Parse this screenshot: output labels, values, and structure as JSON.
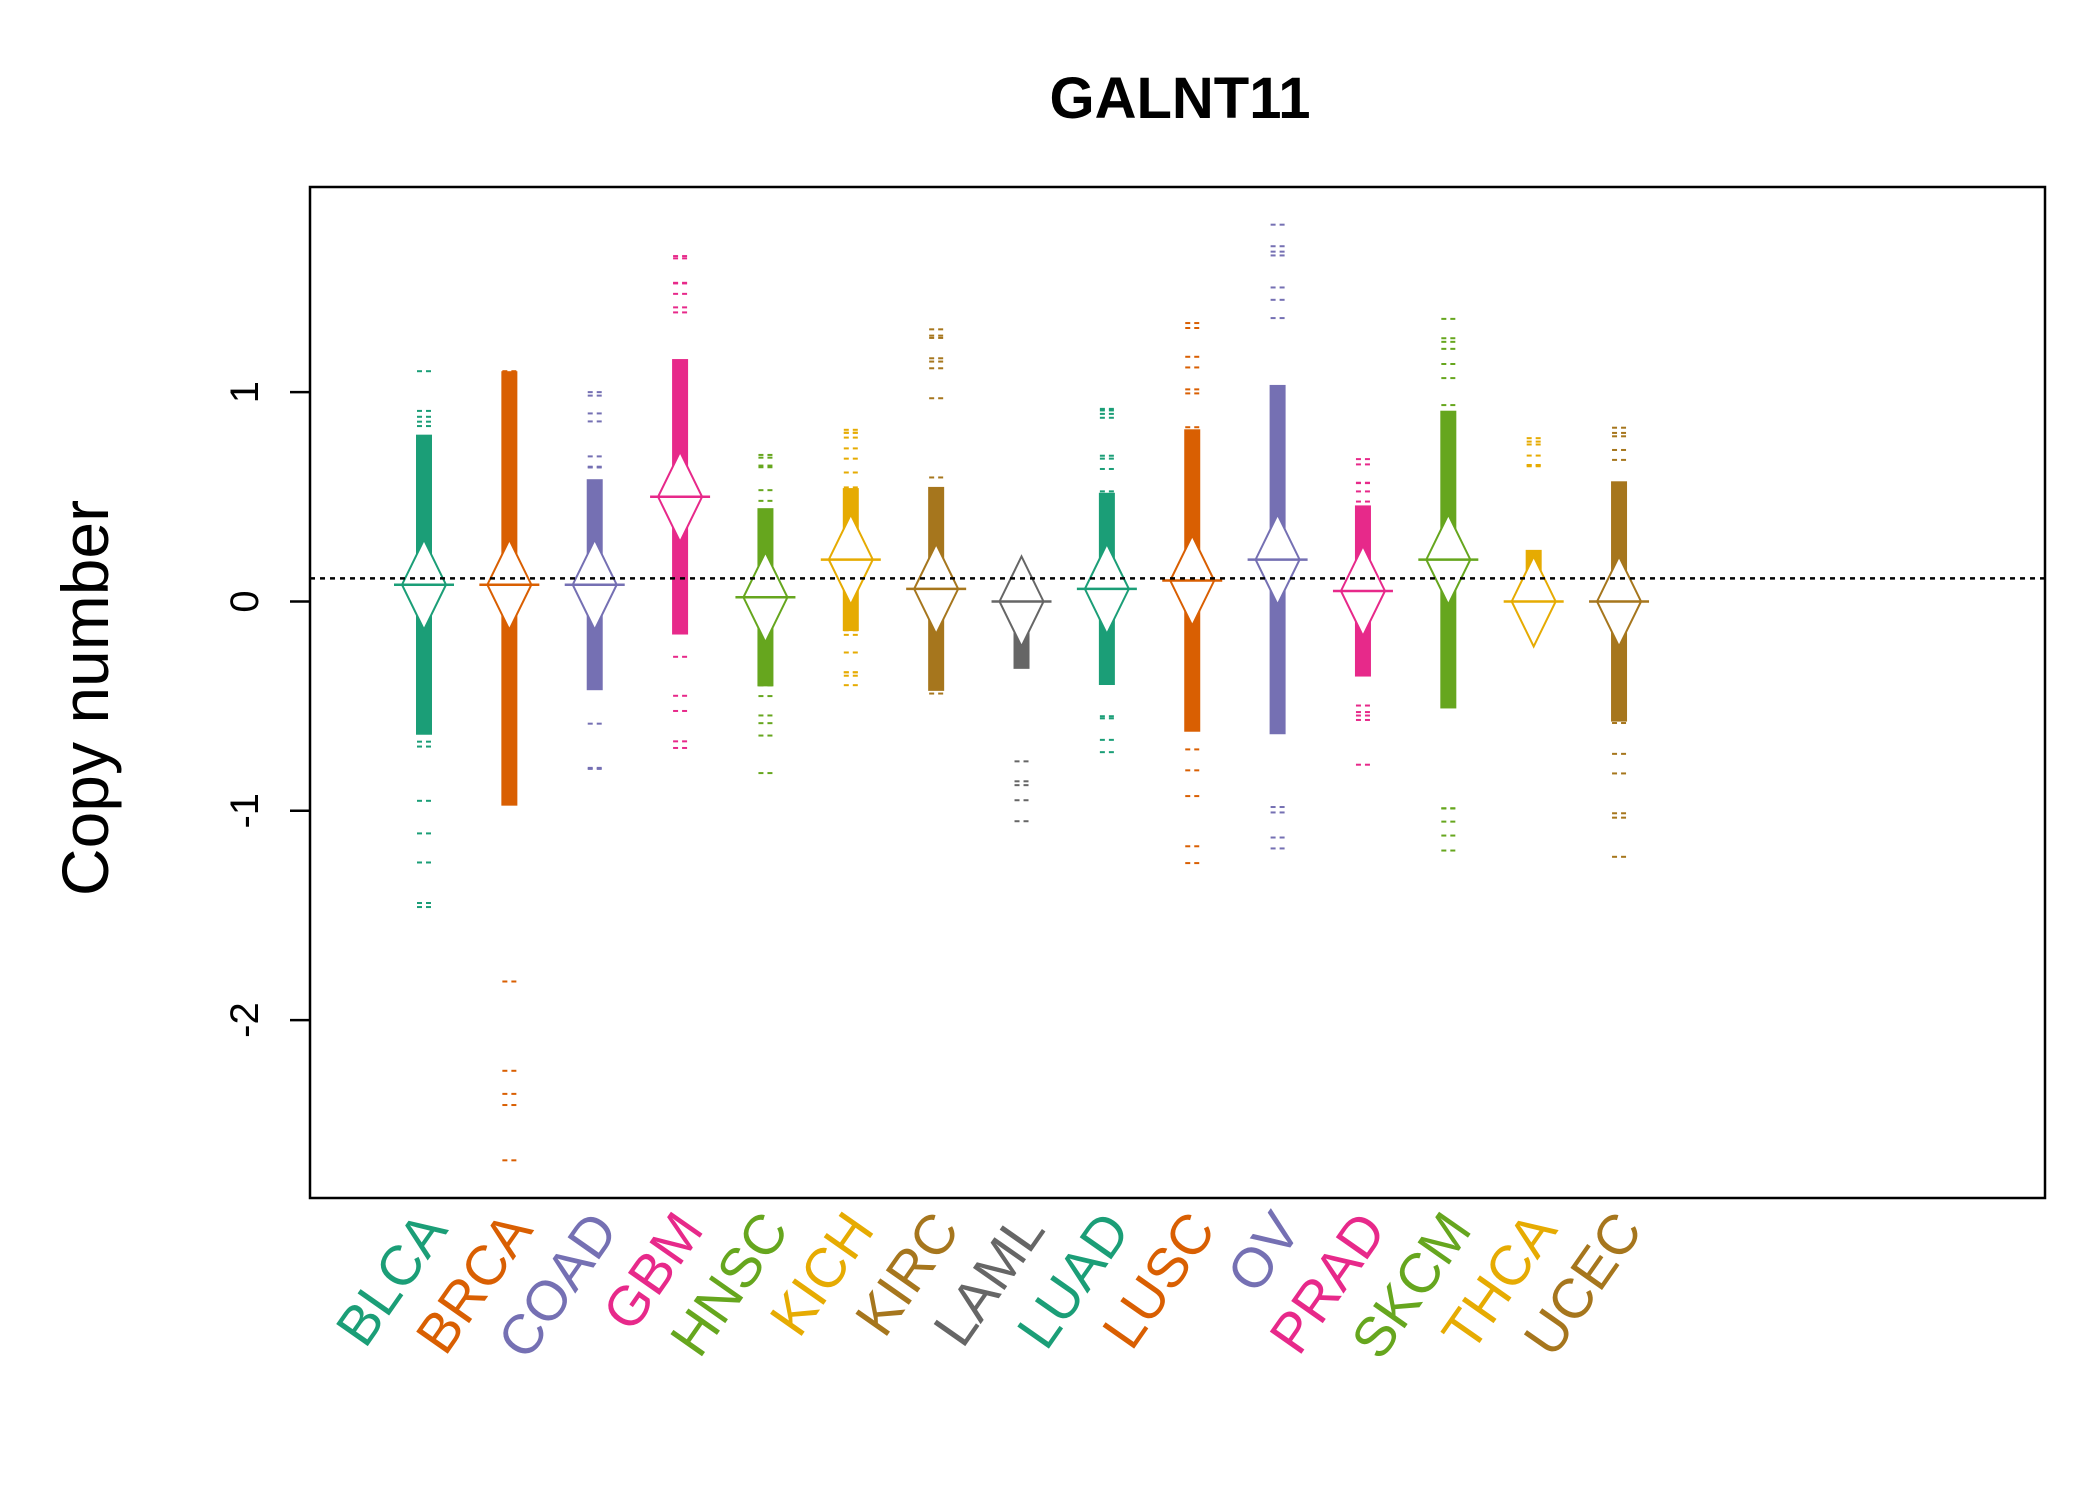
{
  "chart_data": {
    "type": "beanplot",
    "title": "GALNT11",
    "xlabel": "",
    "ylabel": "Copy number",
    "ylim": [
      -2.85,
      1.98
    ],
    "yticks": [
      -2,
      -1,
      0,
      1
    ],
    "reference_line": 0.11,
    "categories": [
      "BLCA",
      "BRCA",
      "COAD",
      "GBM",
      "HNSC",
      "KICH",
      "KIRC",
      "LAML",
      "LUAD",
      "LUSC",
      "OV",
      "PRAD",
      "SKCM",
      "THCA",
      "UCEC"
    ],
    "series": [
      {
        "category": "BLCA",
        "color": "#1B9E77",
        "mean": 0.08,
        "min": -1.46,
        "max": 1.1
      },
      {
        "category": "BRCA",
        "color": "#D95F02",
        "mean": 0.08,
        "min": -2.67,
        "max": 1.1
      },
      {
        "category": "COAD",
        "color": "#7570B3",
        "mean": 0.08,
        "min": -0.8,
        "max": 1.0
      },
      {
        "category": "GBM",
        "color": "#E7298A",
        "mean": 0.5,
        "min": -0.7,
        "max": 1.65
      },
      {
        "category": "HNSC",
        "color": "#66A61E",
        "mean": 0.02,
        "min": -0.82,
        "max": 0.7
      },
      {
        "category": "KICH",
        "color": "#E6AB02",
        "mean": 0.2,
        "min": -0.4,
        "max": 0.82
      },
      {
        "category": "KIRC",
        "color": "#A6761D",
        "mean": 0.06,
        "min": -0.44,
        "max": 1.3
      },
      {
        "category": "LAML",
        "color": "#666666",
        "mean": 0.0,
        "min": -1.05,
        "max": 0.1
      },
      {
        "category": "LUAD",
        "color": "#1B9E77",
        "mean": 0.06,
        "min": -0.72,
        "max": 0.92
      },
      {
        "category": "LUSC",
        "color": "#D95F02",
        "mean": 0.1,
        "min": -1.25,
        "max": 1.33
      },
      {
        "category": "OV",
        "color": "#7570B3",
        "mean": 0.2,
        "min": -1.18,
        "max": 1.8
      },
      {
        "category": "PRAD",
        "color": "#E7298A",
        "mean": 0.05,
        "min": -0.78,
        "max": 0.68
      },
      {
        "category": "SKCM",
        "color": "#66A61E",
        "mean": 0.2,
        "min": -1.19,
        "max": 1.35
      },
      {
        "category": "THCA",
        "color": "#E6AB02",
        "mean": 0.0,
        "min": -0.1,
        "max": 0.78
      },
      {
        "category": "UCEC",
        "color": "#A6761D",
        "mean": 0.0,
        "min": -1.22,
        "max": 0.83
      }
    ]
  }
}
